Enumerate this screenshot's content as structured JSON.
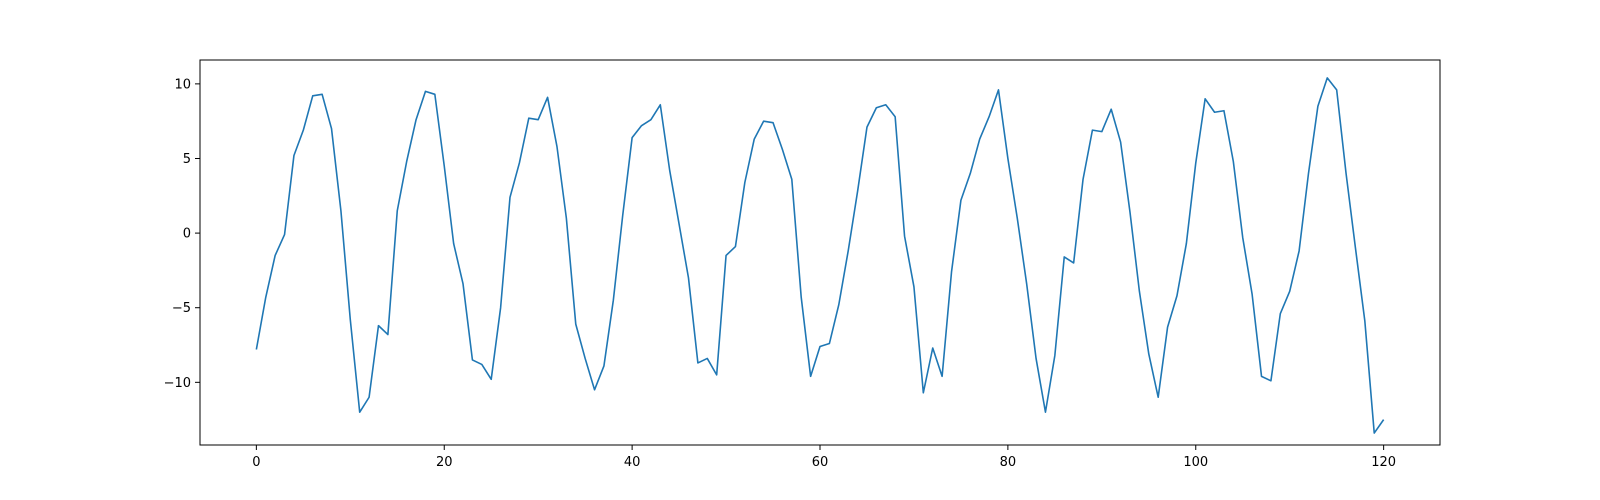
{
  "chart_data": {
    "type": "line",
    "title": "",
    "xlabel": "",
    "ylabel": "",
    "xlim": [
      -6,
      126
    ],
    "ylim": [
      -14.2,
      11.6
    ],
    "grid": false,
    "legend": "none",
    "xticks": [
      0,
      20,
      40,
      60,
      80,
      100,
      120
    ],
    "xtick_labels": [
      "0",
      "20",
      "40",
      "60",
      "80",
      "100",
      "120"
    ],
    "yticks": [
      -10,
      -5,
      0,
      5,
      10
    ],
    "ytick_labels": [
      "−10",
      "−5",
      "0",
      "5",
      "10"
    ],
    "series": [
      {
        "color": "#1f77b4",
        "x": [
          0,
          1,
          2,
          3,
          4,
          5,
          6,
          7,
          8,
          9,
          10,
          11,
          12,
          13,
          14,
          15,
          16,
          17,
          18,
          19,
          20,
          21,
          22,
          23,
          24,
          25,
          26,
          27,
          28,
          29,
          30,
          31,
          32,
          33,
          34,
          35,
          36,
          37,
          38,
          39,
          40,
          41,
          42,
          43,
          44,
          45,
          46,
          47,
          48,
          49,
          50,
          51,
          52,
          53,
          54,
          55,
          56,
          57,
          58,
          59,
          60,
          61,
          62,
          63,
          64,
          65,
          66,
          67,
          68,
          69,
          70,
          71,
          72,
          73,
          74,
          75,
          76,
          77,
          78,
          79,
          80,
          81,
          82,
          83,
          84,
          85,
          86,
          87,
          88,
          89,
          90,
          91,
          92,
          93,
          94,
          95,
          96,
          97,
          98,
          99,
          100,
          101,
          102,
          103,
          104,
          105,
          106,
          107,
          108,
          109,
          110,
          111,
          112,
          113,
          114,
          115,
          116,
          117,
          118,
          119,
          120
        ],
        "y": [
          -7.8,
          -4.3,
          -1.5,
          -0.1,
          5.2,
          6.9,
          9.2,
          9.3,
          7.0,
          1.5,
          -5.8,
          -12.0,
          -11.0,
          -6.2,
          -6.8,
          1.5,
          4.8,
          7.6,
          9.5,
          9.3,
          4.5,
          -0.7,
          -3.4,
          -8.5,
          -8.8,
          -9.8,
          -5.0,
          2.4,
          4.7,
          7.7,
          7.6,
          9.1,
          5.8,
          1.0,
          -6.1,
          -8.4,
          -10.5,
          -8.9,
          -4.5,
          1.2,
          6.4,
          7.2,
          7.6,
          8.6,
          4.2,
          0.6,
          -3.0,
          -8.7,
          -8.4,
          -9.5,
          -1.5,
          -0.9,
          3.4,
          6.3,
          7.5,
          7.4,
          5.6,
          3.6,
          -4.3,
          -9.6,
          -7.6,
          -7.4,
          -4.8,
          -1.2,
          2.8,
          7.1,
          8.4,
          8.6,
          7.8,
          -0.2,
          -3.6,
          -10.7,
          -7.7,
          -9.6,
          -2.6,
          2.2,
          4.0,
          6.3,
          7.8,
          9.6,
          5.0,
          1.0,
          -3.4,
          -8.4,
          -12.0,
          -8.2,
          -1.6,
          -2.0,
          3.6,
          6.9,
          6.8,
          8.3,
          6.1,
          1.4,
          -3.9,
          -8.1,
          -11.0,
          -6.3,
          -4.2,
          -0.7,
          4.7,
          9.0,
          8.1,
          8.2,
          4.8,
          -0.3,
          -4.1,
          -9.6,
          -9.9,
          -5.4,
          -3.9,
          -1.2,
          4.0,
          8.5,
          10.4,
          9.6,
          4.0,
          -1.0,
          -5.9,
          -13.4,
          -12.5
        ]
      }
    ]
  }
}
